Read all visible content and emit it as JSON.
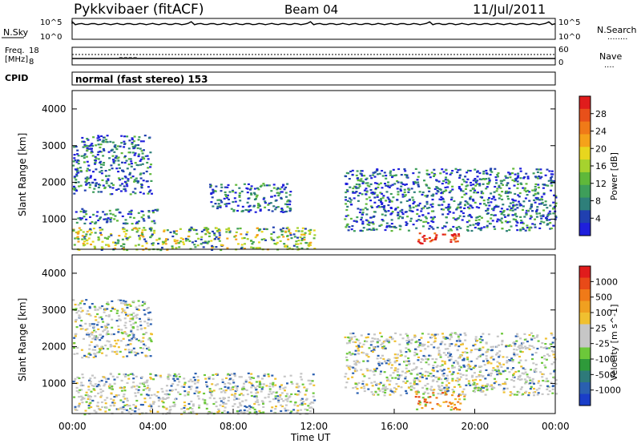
{
  "header": {
    "station": "Pykkvibaer (fitACF)",
    "beam": "Beam 04",
    "date": "11/Jul/2011"
  },
  "noise_panel": {
    "left_label": "N.Sky",
    "left_ticks": [
      "10^5",
      "10^0"
    ],
    "right_ticks": [
      "10^5",
      "10^0"
    ],
    "right_label": "N.Search",
    "right_key": "........"
  },
  "freq_panel": {
    "left_label_line1": "Freq.",
    "left_label_line2": "[MHz]",
    "left_ticks": [
      "18",
      "8"
    ],
    "right_ticks": [
      "60",
      "0"
    ],
    "right_label": "Nave",
    "right_key": "...."
  },
  "cpid": {
    "label": "CPID",
    "text": "normal (fast stereo) 153"
  },
  "time_axis": {
    "title": "Time UT",
    "ticks": [
      "00:00",
      "04:00",
      "08:00",
      "12:00",
      "16:00",
      "20:00",
      "00:00"
    ]
  },
  "chart_data": [
    {
      "type": "heatmap",
      "xlabel": "Time UT",
      "ylabel": "Slant Range [km]",
      "x_range": [
        "00:00",
        "24:00"
      ],
      "ylim": [
        180,
        4500
      ],
      "y_ticks": [
        1000,
        2000,
        3000,
        4000
      ],
      "colorbar": {
        "label": "Power [dB]",
        "ticks": [
          "4",
          "8",
          "12",
          "16",
          "20",
          "24",
          "28"
        ],
        "colors": [
          "#1f1fdc",
          "#2040b0",
          "#2e7f7a",
          "#3e9e5a",
          "#5fb83a",
          "#a6d22e",
          "#e8d61e",
          "#f5a21a",
          "#f07a18",
          "#e8501a",
          "#e01c1c"
        ]
      },
      "scatter_regions": [
        {
          "t": [
            0.0,
            3.9
          ],
          "r": [
            1700,
            3300
          ],
          "level": "mid"
        },
        {
          "t": [
            0.0,
            4.3
          ],
          "r": [
            900,
            1300
          ],
          "level": "mid"
        },
        {
          "t": [
            0.0,
            12.0
          ],
          "r": [
            180,
            800
          ],
          "level": "high"
        },
        {
          "t": [
            6.8,
            10.8
          ],
          "r": [
            1200,
            2000
          ],
          "level": "mid"
        },
        {
          "t": [
            13.5,
            24.0
          ],
          "r": [
            700,
            2400
          ],
          "level": "mid"
        },
        {
          "t": [
            17.0,
            19.2
          ],
          "r": [
            350,
            650
          ],
          "level": "max"
        }
      ]
    },
    {
      "type": "heatmap",
      "xlabel": "Time UT",
      "ylabel": "Slant Range [km]",
      "x_range": [
        "00:00",
        "24:00"
      ],
      "ylim": [
        180,
        4500
      ],
      "y_ticks": [
        1000,
        2000,
        3000,
        4000
      ],
      "colorbar": {
        "label": "Velocity [m s^-1]",
        "ticks": [
          "1000",
          "500",
          "100",
          "25",
          "-25",
          "-100",
          "-500",
          "-1000"
        ],
        "colors": [
          "#1a3ec8",
          "#2a5fb0",
          "#2e7a7a",
          "#2e9a3a",
          "#6cc83a",
          "#c6c6c6",
          "#c6c6c6",
          "#f0c030",
          "#f0a020",
          "#f07a18",
          "#e84a18",
          "#e01c1c"
        ]
      },
      "scatter_regions": [
        {
          "t": [
            0.0,
            3.9
          ],
          "r": [
            1700,
            3300
          ],
          "level": "grey"
        },
        {
          "t": [
            0.0,
            12.0
          ],
          "r": [
            180,
            1300
          ],
          "level": "grey"
        },
        {
          "t": [
            13.5,
            24.0
          ],
          "r": [
            700,
            2400
          ],
          "level": "grey"
        },
        {
          "t": [
            17.0,
            19.5
          ],
          "r": [
            300,
            800
          ],
          "level": "orange"
        }
      ]
    }
  ]
}
